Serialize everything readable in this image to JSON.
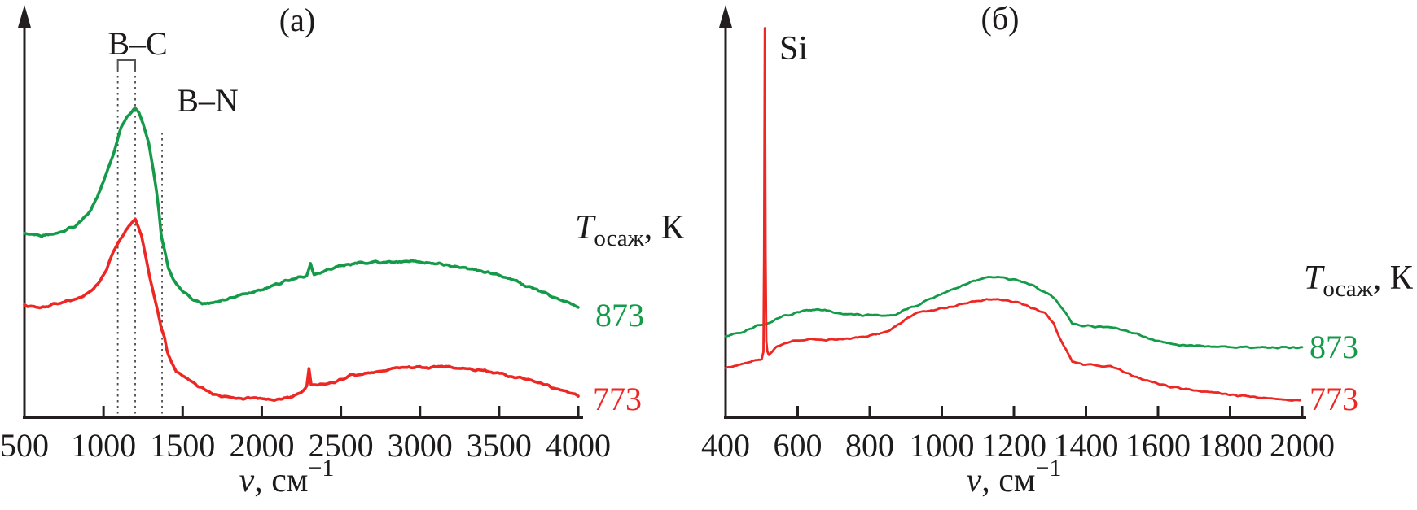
{
  "figure": {
    "background": "#ffffff",
    "axis_color": "#231f20",
    "dotted_line_color": "#4a4a4a"
  },
  "chart_data": [
    {
      "type": "line",
      "panel_label": "(a)",
      "xlabel_nu": "ν",
      "xlabel_unit": ", см",
      "xlabel_sup": "−1",
      "xlim": [
        500,
        4000
      ],
      "x_ticks": [
        500,
        1000,
        1500,
        2000,
        2500,
        3000,
        3500,
        4000
      ],
      "y_axis": "intensity, arb. units (no scale shown)",
      "grid": false,
      "legend_title": {
        "t": "T",
        "sub": "осаж",
        "rest": ", К"
      },
      "annotations": {
        "bc": "B–C",
        "bn": "B–N"
      },
      "bc_lines_cm1": [
        1090,
        1200
      ],
      "bn_line_cm1": 1370,
      "series": [
        {
          "name": "873",
          "color": "#149a48",
          "points": [
            [
              500,
              0.448
            ],
            [
              560,
              0.444
            ],
            [
              600,
              0.442
            ],
            [
              650,
              0.446
            ],
            [
              710,
              0.448
            ],
            [
              800,
              0.462
            ],
            [
              860,
              0.477
            ],
            [
              920,
              0.505
            ],
            [
              960,
              0.535
            ],
            [
              1010,
              0.585
            ],
            [
              1060,
              0.64
            ],
            [
              1110,
              0.705
            ],
            [
              1150,
              0.733
            ],
            [
              1180,
              0.745
            ],
            [
              1200,
              0.752
            ],
            [
              1225,
              0.742
            ],
            [
              1250,
              0.715
            ],
            [
              1285,
              0.669
            ],
            [
              1315,
              0.6
            ],
            [
              1335,
              0.55
            ],
            [
              1350,
              0.5
            ],
            [
              1365,
              0.44
            ],
            [
              1385,
              0.408
            ],
            [
              1410,
              0.362
            ],
            [
              1440,
              0.335
            ],
            [
              1460,
              0.323
            ],
            [
              1500,
              0.307
            ],
            [
              1535,
              0.297
            ],
            [
              1580,
              0.285
            ],
            [
              1625,
              0.277
            ],
            [
              1710,
              0.279
            ],
            [
              1790,
              0.288
            ],
            [
              1860,
              0.297
            ],
            [
              2010,
              0.311
            ],
            [
              2090,
              0.322
            ],
            [
              2160,
              0.333
            ],
            [
              2230,
              0.341
            ],
            [
              2285,
              0.347
            ],
            [
              2308,
              0.372
            ],
            [
              2330,
              0.347
            ],
            [
              2400,
              0.357
            ],
            [
              2460,
              0.366
            ],
            [
              2550,
              0.373
            ],
            [
              2610,
              0.376
            ],
            [
              2700,
              0.377
            ],
            [
              2760,
              0.378
            ],
            [
              2860,
              0.379
            ],
            [
              2960,
              0.378
            ],
            [
              3060,
              0.376
            ],
            [
              3160,
              0.372
            ],
            [
              3260,
              0.366
            ],
            [
              3360,
              0.358
            ],
            [
              3440,
              0.351
            ],
            [
              3525,
              0.343
            ],
            [
              3600,
              0.333
            ],
            [
              3660,
              0.323
            ],
            [
              3730,
              0.312
            ],
            [
              3810,
              0.299
            ],
            [
              3880,
              0.288
            ],
            [
              3945,
              0.279
            ],
            [
              4000,
              0.269
            ]
          ]
        },
        {
          "name": "773",
          "color": "#ed2723",
          "points": [
            [
              500,
              0.273
            ],
            [
              560,
              0.269
            ],
            [
              595,
              0.267
            ],
            [
              650,
              0.272
            ],
            [
              700,
              0.277
            ],
            [
              800,
              0.285
            ],
            [
              900,
              0.299
            ],
            [
              940,
              0.313
            ],
            [
              980,
              0.334
            ],
            [
              1020,
              0.36
            ],
            [
              1060,
              0.402
            ],
            [
              1100,
              0.428
            ],
            [
              1140,
              0.455
            ],
            [
              1170,
              0.468
            ],
            [
              1200,
              0.481
            ],
            [
              1220,
              0.465
            ],
            [
              1240,
              0.442
            ],
            [
              1265,
              0.395
            ],
            [
              1290,
              0.345
            ],
            [
              1320,
              0.295
            ],
            [
              1345,
              0.253
            ],
            [
              1365,
              0.218
            ],
            [
              1385,
              0.195
            ],
            [
              1400,
              0.164
            ],
            [
              1430,
              0.135
            ],
            [
              1460,
              0.111
            ],
            [
              1510,
              0.099
            ],
            [
              1560,
              0.087
            ],
            [
              1610,
              0.075
            ],
            [
              1700,
              0.055
            ],
            [
              1775,
              0.051
            ],
            [
              1860,
              0.046
            ],
            [
              1945,
              0.046
            ],
            [
              2060,
              0.042
            ],
            [
              2130,
              0.046
            ],
            [
              2195,
              0.051
            ],
            [
              2250,
              0.063
            ],
            [
              2285,
              0.077
            ],
            [
              2298,
              0.119
            ],
            [
              2312,
              0.079
            ],
            [
              2360,
              0.079
            ],
            [
              2460,
              0.085
            ],
            [
              2560,
              0.101
            ],
            [
              2640,
              0.107
            ],
            [
              2695,
              0.109
            ],
            [
              2790,
              0.117
            ],
            [
              2860,
              0.121
            ],
            [
              2960,
              0.121
            ],
            [
              3060,
              0.122
            ],
            [
              3130,
              0.123
            ],
            [
              3195,
              0.123
            ],
            [
              3280,
              0.119
            ],
            [
              3360,
              0.115
            ],
            [
              3450,
              0.109
            ],
            [
              3525,
              0.105
            ],
            [
              3610,
              0.097
            ],
            [
              3695,
              0.091
            ],
            [
              3770,
              0.083
            ],
            [
              3845,
              0.071
            ],
            [
              3910,
              0.063
            ],
            [
              3960,
              0.057
            ],
            [
              4000,
              0.051
            ]
          ]
        }
      ]
    },
    {
      "type": "line",
      "panel_label": "(б)",
      "xlabel_nu": "ν",
      "xlabel_unit": ", см",
      "xlabel_sup": "−1",
      "xlim": [
        400,
        2000
      ],
      "x_ticks": [
        400,
        600,
        800,
        1000,
        1200,
        1400,
        1600,
        1800,
        2000
      ],
      "y_axis": "intensity, arb. units (no scale shown)",
      "grid": false,
      "legend_title": {
        "t": "T",
        "sub": "осаж",
        "rest": ", К"
      },
      "annotations": {
        "si": "Si"
      },
      "si_peak_cm1": 510,
      "series": [
        {
          "name": "873",
          "color": "#149a48",
          "points": [
            [
              400,
              0.198
            ],
            [
              430,
              0.204
            ],
            [
              450,
              0.208
            ],
            [
              490,
              0.224
            ],
            [
              520,
              0.231
            ],
            [
              565,
              0.248
            ],
            [
              600,
              0.256
            ],
            [
              625,
              0.261
            ],
            [
              650,
              0.262
            ],
            [
              676,
              0.261
            ],
            [
              715,
              0.253
            ],
            [
              750,
              0.251
            ],
            [
              782,
              0.249
            ],
            [
              827,
              0.248
            ],
            [
              872,
              0.249
            ],
            [
              900,
              0.263
            ],
            [
              940,
              0.277
            ],
            [
              978,
              0.293
            ],
            [
              1020,
              0.309
            ],
            [
              1053,
              0.319
            ],
            [
              1098,
              0.335
            ],
            [
              1130,
              0.34
            ],
            [
              1155,
              0.341
            ],
            [
              1180,
              0.338
            ],
            [
              1204,
              0.335
            ],
            [
              1230,
              0.327
            ],
            [
              1256,
              0.319
            ],
            [
              1280,
              0.308
            ],
            [
              1301,
              0.299
            ],
            [
              1330,
              0.271
            ],
            [
              1362,
              0.228
            ],
            [
              1390,
              0.223
            ],
            [
              1414,
              0.222
            ],
            [
              1440,
              0.221
            ],
            [
              1459,
              0.22
            ],
            [
              1498,
              0.214
            ],
            [
              1525,
              0.207
            ],
            [
              1550,
              0.2
            ],
            [
              1570,
              0.193
            ],
            [
              1588,
              0.188
            ],
            [
              1620,
              0.182
            ],
            [
              1663,
              0.176
            ],
            [
              1720,
              0.174
            ],
            [
              1776,
              0.172
            ],
            [
              1830,
              0.171
            ],
            [
              1889,
              0.17
            ],
            [
              1950,
              0.17
            ],
            [
              2000,
              0.17
            ]
          ]
        },
        {
          "name": "773",
          "color": "#ed2723",
          "points": [
            [
              400,
              0.119
            ],
            [
              430,
              0.126
            ],
            [
              450,
              0.131
            ],
            [
              470,
              0.135
            ],
            [
              488,
              0.139
            ],
            [
              500,
              0.142
            ],
            [
              505,
              0.16
            ],
            [
              507,
              0.4
            ],
            [
              509,
              0.947
            ],
            [
              511,
              0.4
            ],
            [
              513,
              0.185
            ],
            [
              516,
              0.16
            ],
            [
              520,
              0.152
            ],
            [
              540,
              0.17
            ],
            [
              560,
              0.178
            ],
            [
              585,
              0.186
            ],
            [
              615,
              0.189
            ],
            [
              646,
              0.19
            ],
            [
              670,
              0.189
            ],
            [
              691,
              0.188
            ],
            [
              720,
              0.19
            ],
            [
              748,
              0.192
            ],
            [
              776,
              0.196
            ],
            [
              804,
              0.2
            ],
            [
              830,
              0.205
            ],
            [
              850,
              0.21
            ],
            [
              884,
              0.228
            ],
            [
              918,
              0.249
            ],
            [
              947,
              0.257
            ],
            [
              985,
              0.261
            ],
            [
              1015,
              0.267
            ],
            [
              1041,
              0.273
            ],
            [
              1065,
              0.278
            ],
            [
              1091,
              0.283
            ],
            [
              1120,
              0.286
            ],
            [
              1148,
              0.287
            ],
            [
              1170,
              0.285
            ],
            [
              1188,
              0.283
            ],
            [
              1215,
              0.277
            ],
            [
              1238,
              0.271
            ],
            [
              1262,
              0.262
            ],
            [
              1286,
              0.253
            ],
            [
              1310,
              0.228
            ],
            [
              1324,
              0.198
            ],
            [
              1345,
              0.164
            ],
            [
              1362,
              0.135
            ],
            [
              1392,
              0.129
            ],
            [
              1437,
              0.125
            ],
            [
              1482,
              0.121
            ],
            [
              1505,
              0.111
            ],
            [
              1527,
              0.101
            ],
            [
              1560,
              0.092
            ],
            [
              1588,
              0.085
            ],
            [
              1625,
              0.077
            ],
            [
              1663,
              0.069
            ],
            [
              1731,
              0.063
            ],
            [
              1780,
              0.057
            ],
            [
              1821,
              0.053
            ],
            [
              1870,
              0.049
            ],
            [
              1911,
              0.046
            ],
            [
              1955,
              0.043
            ],
            [
              1995,
              0.04
            ]
          ]
        }
      ]
    }
  ]
}
